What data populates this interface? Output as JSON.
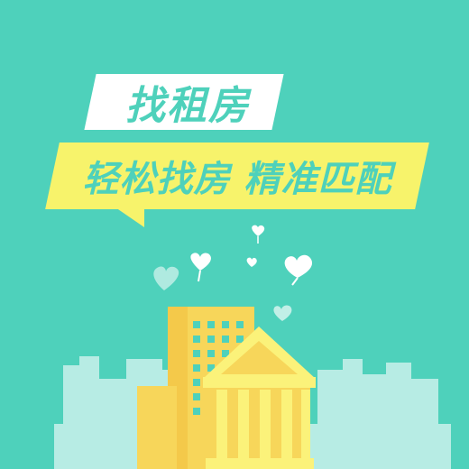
{
  "banner": {
    "title": "找租房",
    "subtitle": "轻松找房 精准匹配"
  },
  "colors": {
    "background": "#4ed1bb",
    "title_box": "#ffffff",
    "subtitle_box": "#f7f36b",
    "text": "#4ed1bb",
    "building_yellow": "#f7d65a",
    "building_light": "#fbf27a",
    "skyline": "#b7ece4"
  },
  "icons": [
    "heart-icon",
    "heart-icon",
    "heart-icon",
    "heart-icon",
    "heart-icon",
    "heart-icon"
  ]
}
